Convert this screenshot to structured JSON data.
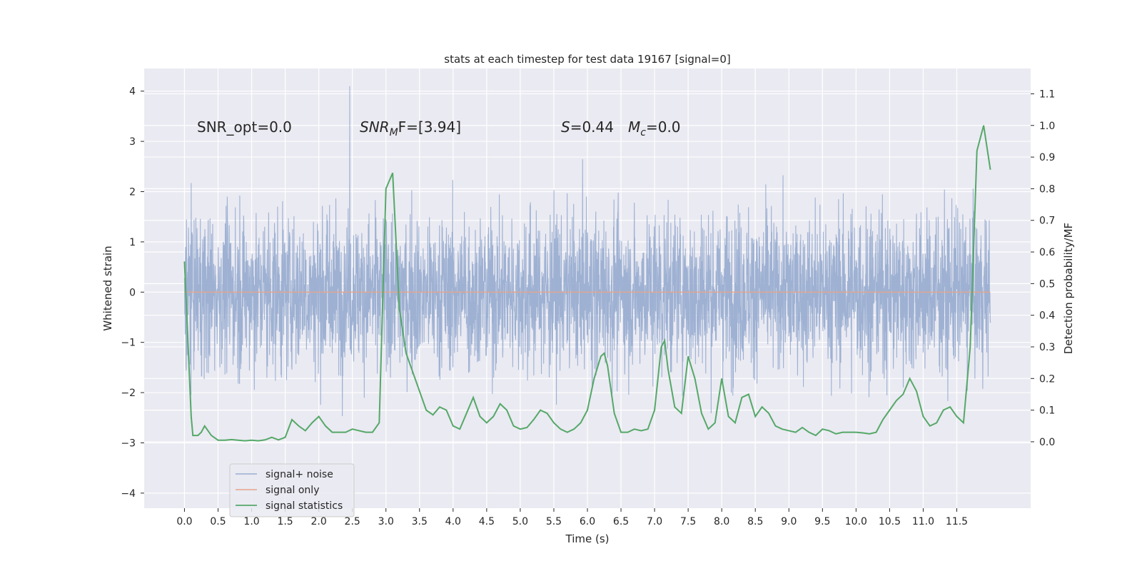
{
  "chart_data": {
    "type": "line",
    "title": "stats at each timestep for test data 19167 [signal=0]",
    "xlabel": "Time (s)",
    "ylabel_left": "Whitened strain",
    "ylabel_right": "Detection probability/MF",
    "xlim": [
      -0.6,
      12.6
    ],
    "ylim_left": [
      -4.3,
      4.45
    ],
    "ylim_right": [
      -0.21,
      1.18
    ],
    "xticks": [
      "0.0",
      "0.5",
      "1.0",
      "1.5",
      "2.0",
      "2.5",
      "3.0",
      "3.5",
      "4.0",
      "4.5",
      "5.0",
      "5.5",
      "6.0",
      "6.5",
      "7.0",
      "7.5",
      "8.0",
      "8.5",
      "9.0",
      "9.5",
      "10.0",
      "10.5",
      "11.0",
      "11.5"
    ],
    "yticks_left": [
      "4",
      "3",
      "2",
      "1",
      "0",
      "−1",
      "−2",
      "−3",
      "−4"
    ],
    "yticks_right": [
      "1.1",
      "1.0",
      "0.9",
      "0.8",
      "0.7",
      "0.6",
      "0.5",
      "0.4",
      "0.3",
      "0.2",
      "0.1",
      "0.0"
    ],
    "grid": true,
    "legend_placement": "lower-left",
    "annotations": {
      "snr_opt": "SNR_opt=0.0",
      "snr_mf_base": "SNR",
      "snr_mf_sub": "M",
      "snr_mf_rest": "F=[3.94]",
      "s_sym": "S",
      "s_val": "=0.44",
      "mc_base": "M",
      "mc_sub": "c",
      "mc_val": "=0.0"
    },
    "series": [
      {
        "name": "signal+ noise",
        "color": "#9aaed1",
        "axis": "left",
        "description_of_values": "white gaussian noise, roughly ±1.4 core band with spikes to about ±3.5, peak 4.1 near t=2.46 s",
        "x_range": [
          0.0,
          12.0
        ]
      },
      {
        "name": "signal only",
        "color": "#e5a58c",
        "axis": "left",
        "x": [
          0.0,
          12.0
        ],
        "y": [
          0.0,
          0.0
        ]
      },
      {
        "name": "signal statistics",
        "color": "#55a868",
        "axis": "right",
        "x": [
          0.0,
          0.1,
          0.125,
          0.2,
          0.25,
          0.3,
          0.4,
          0.5,
          0.6,
          0.7,
          0.8,
          0.9,
          1.0,
          1.1,
          1.2,
          1.3,
          1.4,
          1.5,
          1.6,
          1.7,
          1.8,
          1.9,
          2.0,
          2.1,
          2.2,
          2.3,
          2.4,
          2.5,
          2.6,
          2.7,
          2.8,
          2.9,
          3.0,
          3.1,
          3.2,
          3.3,
          3.4,
          3.5,
          3.6,
          3.7,
          3.8,
          3.9,
          4.0,
          4.1,
          4.2,
          4.3,
          4.4,
          4.5,
          4.6,
          4.7,
          4.8,
          4.9,
          5.0,
          5.1,
          5.2,
          5.3,
          5.4,
          5.5,
          5.6,
          5.7,
          5.8,
          5.9,
          6.0,
          6.1,
          6.2,
          6.25,
          6.3,
          6.4,
          6.5,
          6.6,
          6.7,
          6.8,
          6.9,
          7.0,
          7.1,
          7.15,
          7.2,
          7.3,
          7.4,
          7.5,
          7.6,
          7.7,
          7.8,
          7.9,
          8.0,
          8.1,
          8.2,
          8.3,
          8.4,
          8.5,
          8.6,
          8.7,
          8.8,
          8.9,
          9.0,
          9.1,
          9.2,
          9.3,
          9.4,
          9.5,
          9.6,
          9.7,
          9.8,
          9.9,
          10.0,
          10.1,
          10.2,
          10.3,
          10.4,
          10.5,
          10.6,
          10.7,
          10.8,
          10.9,
          11.0,
          11.1,
          11.2,
          11.3,
          11.4,
          11.5,
          11.6,
          11.7,
          11.8,
          11.9,
          12.0
        ],
        "y": [
          0.57,
          0.08,
          0.02,
          0.02,
          0.03,
          0.05,
          0.02,
          0.005,
          0.005,
          0.007,
          0.005,
          0.003,
          0.005,
          0.003,
          0.006,
          0.014,
          0.006,
          0.014,
          0.07,
          0.05,
          0.035,
          0.06,
          0.08,
          0.05,
          0.03,
          0.03,
          0.03,
          0.04,
          0.035,
          0.03,
          0.03,
          0.06,
          0.8,
          0.85,
          0.42,
          0.28,
          0.22,
          0.16,
          0.1,
          0.085,
          0.11,
          0.1,
          0.05,
          0.04,
          0.09,
          0.14,
          0.08,
          0.06,
          0.08,
          0.12,
          0.1,
          0.05,
          0.04,
          0.045,
          0.07,
          0.1,
          0.09,
          0.06,
          0.04,
          0.03,
          0.04,
          0.06,
          0.1,
          0.2,
          0.27,
          0.28,
          0.24,
          0.09,
          0.03,
          0.03,
          0.04,
          0.035,
          0.04,
          0.1,
          0.3,
          0.32,
          0.23,
          0.11,
          0.09,
          0.27,
          0.2,
          0.09,
          0.04,
          0.06,
          0.2,
          0.08,
          0.06,
          0.14,
          0.15,
          0.08,
          0.11,
          0.09,
          0.05,
          0.04,
          0.035,
          0.03,
          0.045,
          0.03,
          0.02,
          0.04,
          0.035,
          0.025,
          0.03,
          0.03,
          0.03,
          0.028,
          0.025,
          0.03,
          0.07,
          0.1,
          0.13,
          0.15,
          0.2,
          0.16,
          0.08,
          0.05,
          0.06,
          0.1,
          0.11,
          0.08,
          0.06,
          0.3,
          0.92,
          1.0,
          0.86
        ]
      }
    ]
  }
}
